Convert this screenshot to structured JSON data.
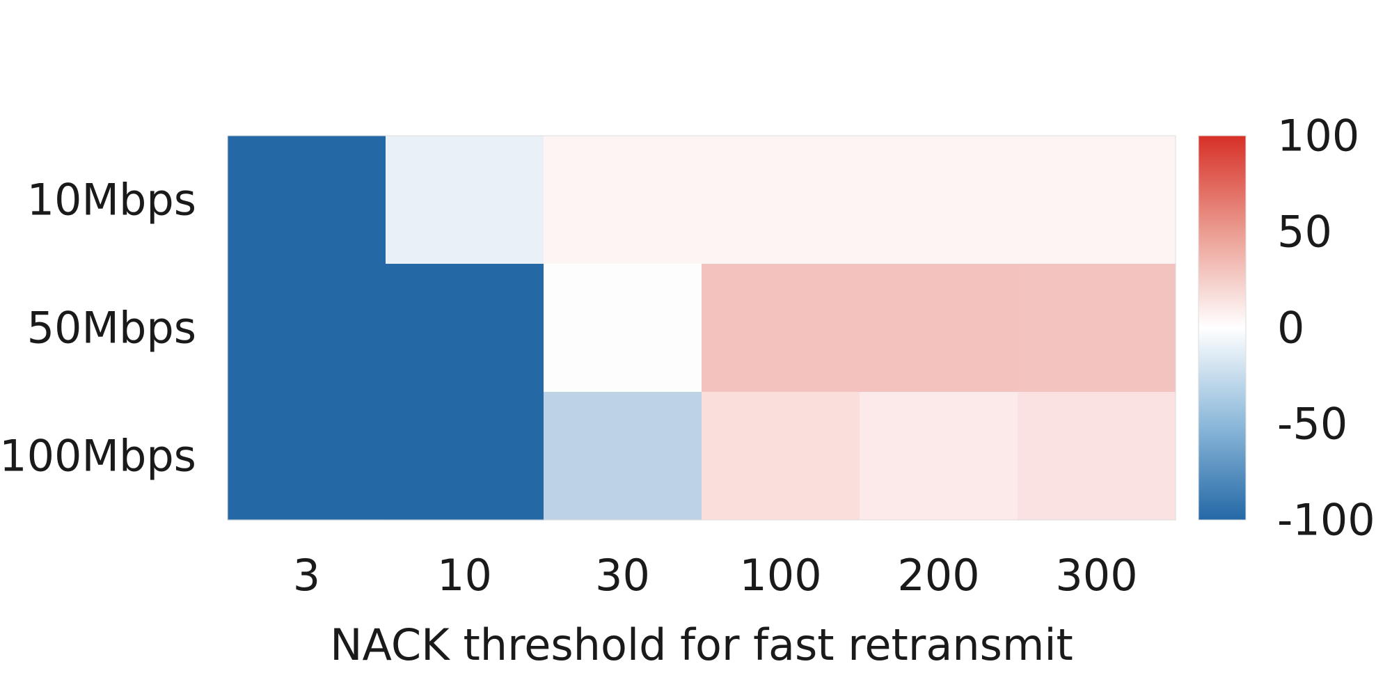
{
  "chart_data": {
    "type": "heatmap",
    "title": "",
    "xlabel": "NACK threshold for fast retransmit",
    "ylabel": "",
    "x_categories": [
      "3",
      "10",
      "30",
      "100",
      "200",
      "300"
    ],
    "y_categories": [
      "10Mbps",
      "50Mbps",
      "100Mbps"
    ],
    "values": [
      [
        -100,
        -10,
        5,
        5,
        5,
        5
      ],
      [
        -100,
        -100,
        -1,
        30,
        30,
        29
      ],
      [
        -100,
        -100,
        -30,
        16,
        10,
        14
      ]
    ],
    "colorbar": {
      "range": [
        -100,
        100
      ],
      "ticks": [
        "100",
        "50",
        "0",
        "-50",
        "-100"
      ],
      "tick_values": [
        100,
        50,
        0,
        -50,
        -100
      ],
      "colormap": "RdBu_r",
      "stops": [
        "#2468a6",
        "#ffffff",
        "#d73027"
      ]
    },
    "grid": false
  }
}
